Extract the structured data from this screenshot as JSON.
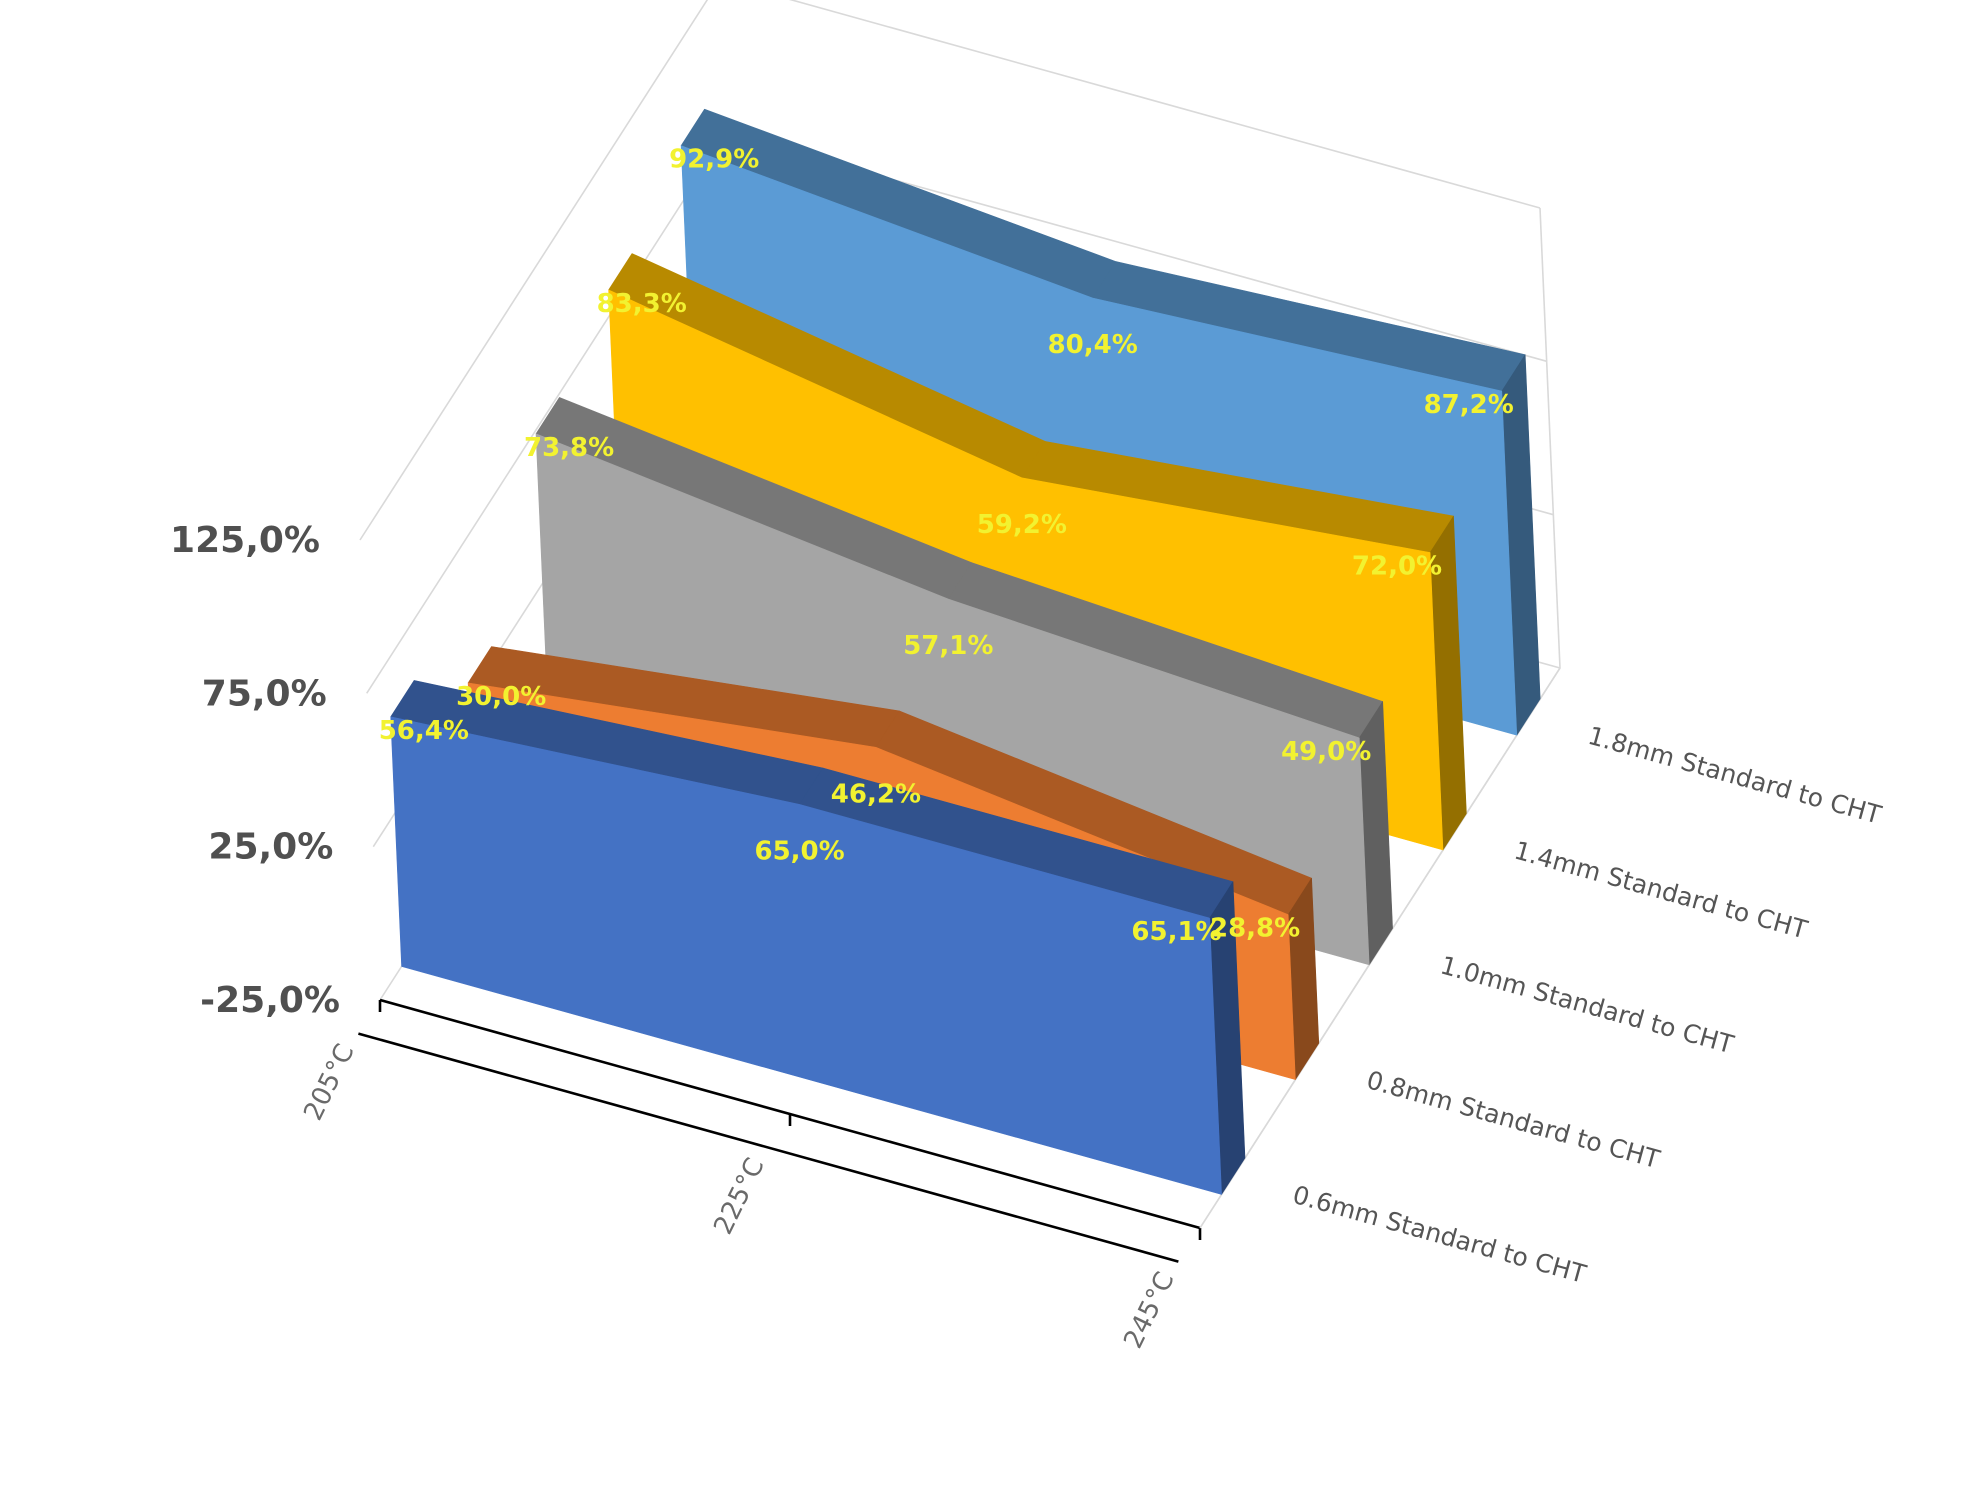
{
  "chart_data": {
    "type": "area",
    "subtype": "3d-ribbon",
    "categories": [
      "205°C",
      "225°C",
      "245°C"
    ],
    "series": [
      {
        "name": "0.6mm Standard to CHT",
        "values": [
          56.4,
          65.0,
          65.1
        ],
        "labels": [
          "56,4%",
          "65,0%",
          "65,1%"
        ],
        "color": "#4472C4"
      },
      {
        "name": "0.8mm Standard to CHT",
        "values": [
          30.0,
          46.2,
          28.8
        ],
        "labels": [
          "30,0%",
          "46,2%",
          "28,8%"
        ],
        "color": "#ED7D31"
      },
      {
        "name": "1.0mm Standard to CHT",
        "values": [
          73.8,
          57.1,
          49.0
        ],
        "labels": [
          "73,8%",
          "57,1%",
          "49,0%"
        ],
        "color": "#A5A5A5"
      },
      {
        "name": "1.4mm Standard to CHT",
        "values": [
          83.3,
          59.2,
          72.0
        ],
        "labels": [
          "83,3%",
          "59,2%",
          "72,0%"
        ],
        "color": "#FFC000"
      },
      {
        "name": "1.8mm Standard to CHT",
        "values": [
          92.9,
          80.4,
          87.2
        ],
        "labels": [
          "92,9%",
          "80,4%",
          "87,2%"
        ],
        "color": "#5B9BD5"
      }
    ],
    "y_ticks": [
      "125,0%",
      "75,0%",
      "25,0%",
      "-25,0%"
    ],
    "y_tick_values": [
      125,
      75,
      25,
      -25
    ],
    "ylim": [
      -25,
      125
    ],
    "grid": true,
    "label_color": "#F2F230"
  }
}
